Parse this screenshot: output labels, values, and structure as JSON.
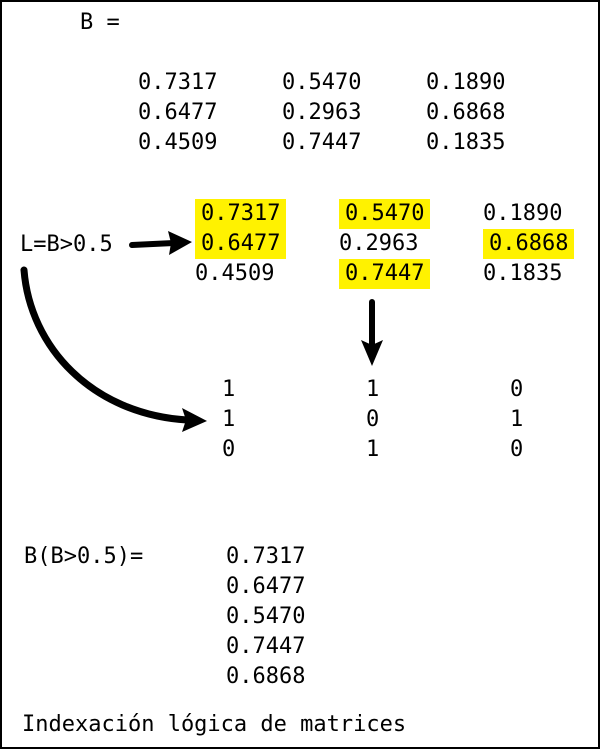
{
  "header": {
    "label": "B ="
  },
  "matrix_B": {
    "rows": [
      [
        "0.7317",
        "0.5470",
        "0.1890"
      ],
      [
        "0.6477",
        "0.2963",
        "0.6868"
      ],
      [
        "0.4509",
        "0.7447",
        "0.1835"
      ]
    ]
  },
  "expression": {
    "label": "L=B>0.5"
  },
  "highlighted_matrix": {
    "rows": [
      [
        "0.7317",
        "0.5470",
        "0.1890"
      ],
      [
        "0.6477",
        "0.2963",
        "0.6868"
      ],
      [
        "0.4509",
        "0.7447",
        "0.1835"
      ]
    ],
    "highlight": [
      [
        true,
        true,
        false
      ],
      [
        true,
        false,
        true
      ],
      [
        false,
        true,
        false
      ]
    ],
    "highlight_color": "#fff200"
  },
  "logical_matrix": {
    "rows": [
      [
        "1",
        "1",
        "0"
      ],
      [
        "1",
        "0",
        "1"
      ],
      [
        "0",
        "1",
        "0"
      ]
    ]
  },
  "result": {
    "label": "B(B>0.5)=",
    "values": [
      "0.7317",
      "0.6477",
      "0.5470",
      "0.7447",
      "0.6868"
    ]
  },
  "caption": "Indexación lógica de matrices"
}
